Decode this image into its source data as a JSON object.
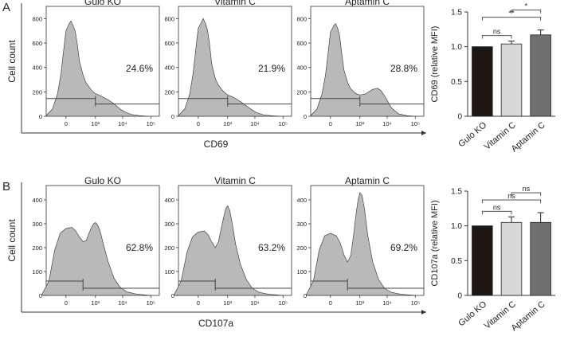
{
  "chart_data": [
    {
      "id": "A",
      "panel_label": "A",
      "type": "histogram",
      "xlabel": "CD69",
      "ylabel": "Cell count",
      "x_tick_labels": [
        "0",
        "10³",
        "10⁴",
        "10⁵"
      ],
      "histograms": [
        {
          "title": "Gulo KO",
          "percent": "24.6%",
          "y_ticks": [
            "0",
            "200",
            "400",
            "600",
            "800"
          ],
          "ymax": 900,
          "gate_start": "10³",
          "gate_start_value": 1000,
          "curve": [
            [
              -400,
              5
            ],
            [
              -200,
              60
            ],
            [
              -100,
              180
            ],
            [
              -50,
              350
            ],
            [
              -10,
              620
            ],
            [
              0,
              700
            ],
            [
              30,
              760
            ],
            [
              50,
              780
            ],
            [
              80,
              740
            ],
            [
              110,
              700
            ],
            [
              150,
              600
            ],
            [
              200,
              450
            ],
            [
              300,
              340
            ],
            [
              400,
              280
            ],
            [
              600,
              230
            ],
            [
              800,
              200
            ],
            [
              1000,
              185
            ],
            [
              1500,
              170
            ],
            [
              2000,
              155
            ],
            [
              3000,
              135
            ],
            [
              5000,
              100
            ],
            [
              8000,
              60
            ],
            [
              12000,
              35
            ],
            [
              20000,
              15
            ],
            [
              40000,
              5
            ],
            [
              80000,
              0
            ]
          ]
        },
        {
          "title": "Vitamin C",
          "percent": "21.9%",
          "y_ticks": [
            "0",
            "200",
            "400",
            "600",
            "800"
          ],
          "ymax": 900,
          "gate_start": "10³",
          "gate_start_value": 1000,
          "curve": [
            [
              -400,
              5
            ],
            [
              -200,
              60
            ],
            [
              -100,
              180
            ],
            [
              -50,
              360
            ],
            [
              -10,
              640
            ],
            [
              0,
              720
            ],
            [
              30,
              770
            ],
            [
              50,
              800
            ],
            [
              80,
              760
            ],
            [
              110,
              710
            ],
            [
              150,
              600
            ],
            [
              200,
              430
            ],
            [
              300,
              310
            ],
            [
              400,
              260
            ],
            [
              600,
              215
            ],
            [
              800,
              190
            ],
            [
              1000,
              175
            ],
            [
              1500,
              160
            ],
            [
              2000,
              145
            ],
            [
              3000,
              120
            ],
            [
              5000,
              85
            ],
            [
              8000,
              50
            ],
            [
              12000,
              28
            ],
            [
              20000,
              12
            ],
            [
              40000,
              4
            ],
            [
              80000,
              0
            ]
          ]
        },
        {
          "title": "Aptamin C",
          "percent": "28.8%",
          "y_ticks": [
            "0",
            "200",
            "400",
            "600",
            "800"
          ],
          "ymax": 900,
          "gate_start": "10³",
          "gate_start_value": 1000,
          "curve": [
            [
              -400,
              5
            ],
            [
              -200,
              60
            ],
            [
              -100,
              180
            ],
            [
              -50,
              340
            ],
            [
              -10,
              600
            ],
            [
              0,
              690
            ],
            [
              30,
              740
            ],
            [
              50,
              760
            ],
            [
              80,
              720
            ],
            [
              110,
              660
            ],
            [
              150,
              520
            ],
            [
              200,
              380
            ],
            [
              300,
              280
            ],
            [
              400,
              230
            ],
            [
              600,
              195
            ],
            [
              800,
              180
            ],
            [
              1000,
              175
            ],
            [
              1500,
              180
            ],
            [
              2000,
              195
            ],
            [
              3000,
              220
            ],
            [
              4500,
              230
            ],
            [
              6000,
              210
            ],
            [
              9000,
              150
            ],
            [
              14000,
              70
            ],
            [
              25000,
              20
            ],
            [
              50000,
              5
            ],
            [
              90000,
              0
            ]
          ]
        }
      ]
    },
    {
      "id": "A-bar",
      "type": "bar",
      "categories": [
        "Gulo KO",
        "Vitamin C",
        "Aptamin C"
      ],
      "values": [
        1.0,
        1.04,
        1.17
      ],
      "errors": [
        0.0,
        0.04,
        0.07
      ],
      "colors": [
        "#1e1613",
        "#d8d8d8",
        "#707070"
      ],
      "ylabel": "CD69 (relative MFI)",
      "ylim": [
        0,
        1.5
      ],
      "y_ticks": [
        "0",
        "0.5",
        "1.0",
        "1.5"
      ],
      "significance": [
        {
          "from": 0,
          "to": 1,
          "label": "ns"
        },
        {
          "from": 0,
          "to": 2,
          "label": "**"
        },
        {
          "from": 1,
          "to": 2,
          "label": "*"
        }
      ]
    },
    {
      "id": "B",
      "panel_label": "B",
      "type": "histogram",
      "xlabel": "CD107a",
      "ylabel": "Cell count",
      "x_tick_labels": [
        "0",
        "10³",
        "10⁴",
        "10⁵"
      ],
      "histograms": [
        {
          "title": "Gulo KO",
          "percent": "62.8%",
          "y_ticks": [
            "0",
            "100",
            "200",
            "300",
            "400"
          ],
          "ymax": 460,
          "gate_start": "0",
          "gate_start_value": 300,
          "curve": [
            [
              -600,
              5
            ],
            [
              -300,
              60
            ],
            [
              -150,
              190
            ],
            [
              -60,
              260
            ],
            [
              0,
              280
            ],
            [
              60,
              285
            ],
            [
              120,
              270
            ],
            [
              200,
              245
            ],
            [
              300,
              225
            ],
            [
              420,
              230
            ],
            [
              550,
              260
            ],
            [
              700,
              285
            ],
            [
              850,
              300
            ],
            [
              1000,
              305
            ],
            [
              1200,
              295
            ],
            [
              1500,
              270
            ],
            [
              2000,
              215
            ],
            [
              3000,
              140
            ],
            [
              5000,
              70
            ],
            [
              8000,
              35
            ],
            [
              14000,
              15
            ],
            [
              30000,
              6
            ],
            [
              60000,
              2
            ],
            [
              100000,
              0
            ]
          ]
        },
        {
          "title": "Vitamin C",
          "percent": "63.2%",
          "y_ticks": [
            "0",
            "100",
            "200",
            "300",
            "400"
          ],
          "ymax": 460,
          "gate_start": "0",
          "gate_start_value": 300,
          "curve": [
            [
              -600,
              5
            ],
            [
              -300,
              60
            ],
            [
              -150,
              180
            ],
            [
              -60,
              245
            ],
            [
              0,
              265
            ],
            [
              60,
              270
            ],
            [
              120,
              255
            ],
            [
              200,
              225
            ],
            [
              300,
              200
            ],
            [
              420,
              225
            ],
            [
              550,
              280
            ],
            [
              700,
              330
            ],
            [
              850,
              365
            ],
            [
              1000,
              375
            ],
            [
              1200,
              355
            ],
            [
              1500,
              300
            ],
            [
              2000,
              215
            ],
            [
              3000,
              130
            ],
            [
              5000,
              65
            ],
            [
              8000,
              30
            ],
            [
              14000,
              13
            ],
            [
              30000,
              5
            ],
            [
              60000,
              2
            ],
            [
              100000,
              0
            ]
          ]
        },
        {
          "title": "Aptamin C",
          "percent": "69.2%",
          "y_ticks": [
            "0",
            "100",
            "200",
            "300",
            "400"
          ],
          "ymax": 460,
          "gate_start": "0",
          "gate_start_value": 300,
          "curve": [
            [
              -600,
              5
            ],
            [
              -300,
              60
            ],
            [
              -150,
              190
            ],
            [
              -60,
              250
            ],
            [
              0,
              260
            ],
            [
              60,
              250
            ],
            [
              120,
              220
            ],
            [
              200,
              170
            ],
            [
              300,
              140
            ],
            [
              420,
              165
            ],
            [
              550,
              250
            ],
            [
              700,
              340
            ],
            [
              850,
              400
            ],
            [
              1000,
              430
            ],
            [
              1200,
              420
            ],
            [
              1500,
              360
            ],
            [
              2000,
              250
            ],
            [
              3000,
              140
            ],
            [
              5000,
              65
            ],
            [
              8000,
              30
            ],
            [
              14000,
              13
            ],
            [
              30000,
              5
            ],
            [
              60000,
              2
            ],
            [
              100000,
              0
            ]
          ]
        }
      ]
    },
    {
      "id": "B-bar",
      "type": "bar",
      "categories": [
        "Gulo KO",
        "Vitamin C",
        "Aptamin C"
      ],
      "values": [
        1.0,
        1.05,
        1.05
      ],
      "errors": [
        0.0,
        0.08,
        0.14
      ],
      "colors": [
        "#1e1613",
        "#d8d8d8",
        "#707070"
      ],
      "ylabel": "CD107a (relative MFI)",
      "ylim": [
        0,
        1.5
      ],
      "y_ticks": [
        "0",
        "0.5",
        "1.0",
        "1.5"
      ],
      "significance": [
        {
          "from": 0,
          "to": 1,
          "label": "ns"
        },
        {
          "from": 0,
          "to": 2,
          "label": "ns"
        },
        {
          "from": 1,
          "to": 2,
          "label": "ns"
        }
      ]
    }
  ]
}
